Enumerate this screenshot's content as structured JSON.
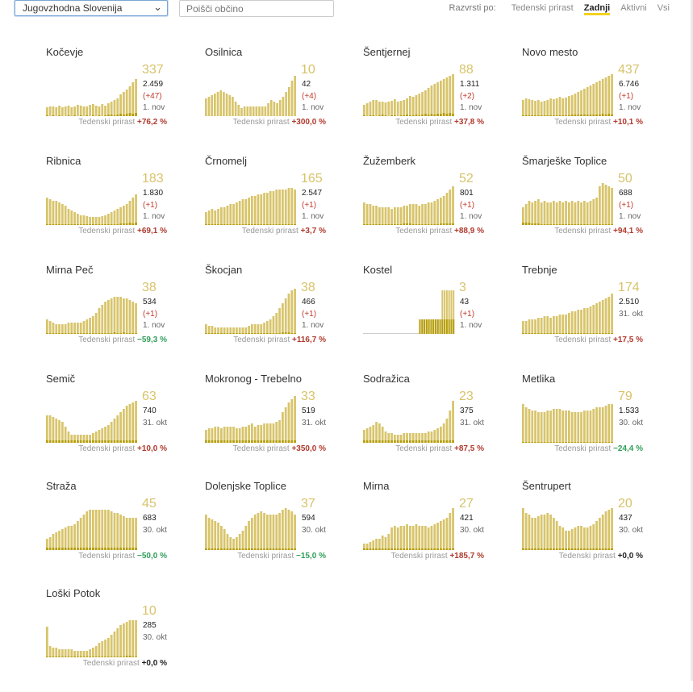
{
  "toolbar": {
    "region": "Jugovzhodna Slovenija",
    "search_placeholder": "Poišči občino",
    "sort_label": "Razvrsti po:",
    "sort_options": [
      "Tedenski prirast",
      "Zadnji",
      "Aktivni",
      "Vsi"
    ],
    "active_sort": "Zadnji"
  },
  "colors": {
    "bar_light": "#d8c46a",
    "bar_dark": "#b59e0c",
    "up": "#b03a2e",
    "down": "#2e9e57"
  },
  "footer_label": "Tedenski prirast",
  "municipalities": [
    {
      "name": "Kočevje",
      "active": "337",
      "total": "2.459",
      "delta": "(+47)",
      "date": "1. nov",
      "weekly": "+76,2 %",
      "trend": "up",
      "bars": [
        11,
        12,
        12,
        11,
        13,
        11,
        12,
        13,
        11,
        12,
        14,
        13,
        12,
        12,
        14,
        15,
        13,
        12,
        15,
        13,
        16,
        18,
        20,
        22,
        27,
        30,
        33,
        37,
        42,
        46
      ],
      "darks": [
        1,
        0,
        1,
        0,
        1,
        0,
        0,
        1,
        0,
        1,
        0,
        1,
        0,
        1,
        0,
        1,
        0,
        1,
        0,
        1,
        2,
        2,
        1,
        2,
        3,
        2,
        3,
        4,
        3,
        4
      ]
    },
    {
      "name": "Osilnica",
      "active": "10",
      "total": "42",
      "delta": "(+4)",
      "date": "1. nov",
      "weekly": "+300,0 %",
      "trend": "up",
      "bars": [
        22,
        24,
        26,
        28,
        30,
        32,
        30,
        28,
        26,
        24,
        18,
        14,
        10,
        12,
        12,
        12,
        12,
        12,
        12,
        12,
        12,
        16,
        20,
        18,
        16,
        20,
        24,
        30,
        36,
        44,
        50
      ],
      "darks": [
        0,
        0,
        0,
        0,
        0,
        0,
        0,
        0,
        0,
        0,
        0,
        0,
        0,
        0,
        0,
        0,
        0,
        0,
        0,
        0,
        0,
        0,
        0,
        0,
        0,
        0,
        0,
        0,
        0,
        0,
        0
      ]
    },
    {
      "name": "Šentjernej",
      "active": "88",
      "total": "1.311",
      "delta": "(+2)",
      "date": "1. nov",
      "weekly": "+37,8 %",
      "trend": "up",
      "bars": [
        14,
        16,
        18,
        20,
        20,
        18,
        18,
        17,
        18,
        19,
        21,
        18,
        19,
        20,
        22,
        25,
        24,
        26,
        28,
        30,
        32,
        35,
        38,
        40,
        42,
        44,
        46,
        48,
        50,
        52
      ],
      "darks": [
        1,
        0,
        1,
        1,
        0,
        1,
        2,
        1,
        0,
        1,
        1,
        0,
        1,
        1,
        2,
        1,
        1,
        2,
        1,
        2,
        3,
        2,
        3,
        2,
        3,
        3,
        4,
        3,
        4,
        3
      ]
    },
    {
      "name": "Novo mesto",
      "active": "437",
      "total": "6.746",
      "delta": "(+1)",
      "date": "1. nov",
      "weekly": "+10,1 %",
      "trend": "up",
      "bars": [
        20,
        22,
        21,
        20,
        19,
        20,
        18,
        19,
        20,
        22,
        21,
        22,
        24,
        22,
        23,
        25,
        26,
        28,
        30,
        32,
        34,
        36,
        38,
        40,
        42,
        44,
        46,
        48,
        50,
        52
      ],
      "darks": [
        1,
        1,
        1,
        1,
        1,
        1,
        1,
        1,
        1,
        1,
        1,
        1,
        1,
        1,
        1,
        1,
        2,
        2,
        2,
        2,
        2,
        2,
        2,
        2,
        2,
        2,
        3,
        2,
        3,
        2
      ]
    },
    {
      "name": "Ribnica",
      "active": "183",
      "total": "1.830",
      "delta": "(+1)",
      "date": "1. nov",
      "weekly": "+69,1 %",
      "trend": "up",
      "bars": [
        34,
        32,
        30,
        30,
        28,
        26,
        24,
        20,
        18,
        16,
        14,
        12,
        12,
        11,
        10,
        10,
        10,
        10,
        11,
        12,
        14,
        16,
        18,
        20,
        22,
        24,
        26,
        30,
        34,
        38
      ],
      "darks": [
        1,
        1,
        1,
        1,
        1,
        1,
        1,
        1,
        1,
        1,
        1,
        1,
        1,
        1,
        1,
        1,
        1,
        1,
        1,
        1,
        1,
        1,
        1,
        1,
        2,
        2,
        2,
        3,
        2,
        3
      ]
    },
    {
      "name": "Črnomelj",
      "active": "165",
      "total": "2.547",
      "delta": "(+1)",
      "date": "1. nov",
      "weekly": "+3,7 %",
      "trend": "up",
      "bars": [
        16,
        18,
        20,
        18,
        20,
        22,
        22,
        24,
        26,
        26,
        28,
        30,
        32,
        32,
        34,
        36,
        36,
        38,
        38,
        40,
        40,
        42,
        42,
        44,
        44,
        44,
        44,
        46,
        46,
        44
      ],
      "darks": [
        1,
        1,
        1,
        1,
        1,
        1,
        1,
        1,
        1,
        1,
        1,
        1,
        1,
        1,
        1,
        1,
        1,
        1,
        1,
        1,
        1,
        1,
        1,
        1,
        1,
        1,
        1,
        1,
        1,
        1
      ]
    },
    {
      "name": "Žužemberk",
      "active": "52",
      "total": "801",
      "delta": "(+1)",
      "date": "1. nov",
      "weekly": "+88,9 %",
      "trend": "up",
      "bars": [
        28,
        26,
        26,
        24,
        24,
        22,
        22,
        22,
        22,
        20,
        22,
        22,
        22,
        24,
        24,
        26,
        26,
        26,
        24,
        26,
        26,
        28,
        28,
        30,
        32,
        34,
        36,
        40,
        44,
        48
      ],
      "darks": [
        1,
        1,
        1,
        1,
        1,
        1,
        1,
        1,
        1,
        1,
        1,
        1,
        1,
        2,
        2,
        2,
        1,
        1,
        1,
        1,
        1,
        1,
        1,
        1,
        1,
        2,
        2,
        2,
        2,
        2
      ]
    },
    {
      "name": "Šmarješke Toplice",
      "active": "50",
      "total": "688",
      "delta": "(+1)",
      "date": "1. nov",
      "weekly": "+94,1 %",
      "trend": "up",
      "bars": [
        22,
        26,
        30,
        28,
        30,
        32,
        28,
        30,
        28,
        28,
        30,
        28,
        30,
        28,
        30,
        28,
        30,
        28,
        30,
        28,
        30,
        28,
        30,
        32,
        34,
        48,
        52,
        50,
        48,
        46
      ],
      "darks": [
        3,
        3,
        3,
        2,
        2,
        2,
        1,
        1,
        1,
        1,
        1,
        1,
        1,
        1,
        1,
        1,
        1,
        1,
        1,
        1,
        1,
        1,
        1,
        1,
        1,
        1,
        1,
        1,
        1,
        1
      ]
    },
    {
      "name": "Mirna Peč",
      "active": "38",
      "total": "534",
      "delta": "(+1)",
      "date": "1. nov",
      "weekly": "−59,3 %",
      "trend": "down",
      "bars": [
        18,
        16,
        14,
        12,
        12,
        12,
        12,
        14,
        14,
        14,
        14,
        14,
        16,
        18,
        20,
        22,
        26,
        32,
        36,
        40,
        42,
        44,
        46,
        46,
        46,
        44,
        44,
        42,
        40,
        38
      ],
      "darks": [
        1,
        1,
        1,
        1,
        1,
        1,
        1,
        1,
        1,
        1,
        1,
        1,
        1,
        1,
        1,
        1,
        1,
        1,
        1,
        1,
        1,
        1,
        2,
        1,
        1,
        2,
        1,
        1,
        1,
        1
      ]
    },
    {
      "name": "Škocjan",
      "active": "38",
      "total": "466",
      "delta": "(+1)",
      "date": "1. nov",
      "weekly": "+116,7 %",
      "trend": "up",
      "bars": [
        12,
        10,
        10,
        8,
        8,
        8,
        8,
        8,
        8,
        8,
        8,
        8,
        8,
        8,
        10,
        12,
        12,
        12,
        12,
        14,
        16,
        18,
        22,
        26,
        32,
        38,
        44,
        50,
        54,
        56
      ],
      "darks": [
        1,
        1,
        1,
        1,
        1,
        1,
        1,
        1,
        1,
        1,
        1,
        1,
        1,
        1,
        1,
        1,
        1,
        1,
        1,
        1,
        1,
        1,
        1,
        1,
        1,
        2,
        2,
        2,
        1,
        1
      ]
    },
    {
      "name": "Kostel",
      "active": "3",
      "total": "43",
      "delta": "(+1)",
      "date": "1. nov",
      "weekly": "",
      "trend": "zero",
      "bars": [
        0,
        0,
        0,
        0,
        0,
        0,
        0,
        0,
        0,
        0,
        0,
        0,
        0,
        0,
        0,
        0,
        0,
        0,
        0,
        0,
        0,
        0,
        0,
        0,
        0,
        18,
        18,
        18,
        18,
        18,
        18,
        18,
        18,
        18,
        18,
        54,
        54,
        54,
        54,
        54,
        54
      ],
      "darks": [
        0,
        0,
        0,
        0,
        0,
        0,
        0,
        0,
        0,
        0,
        0,
        0,
        0,
        0,
        0,
        0,
        0,
        0,
        0,
        0,
        0,
        0,
        0,
        0,
        0,
        18,
        18,
        18,
        18,
        18,
        18,
        18,
        18,
        18,
        18,
        18,
        18,
        18,
        18,
        18,
        18
      ]
    },
    {
      "name": "Trebnje",
      "active": "174",
      "total": "2.510",
      "delta": "",
      "date": "31. okt",
      "weekly": "+17,5 %",
      "trend": "up",
      "bars": [
        16,
        16,
        18,
        18,
        18,
        20,
        20,
        22,
        22,
        20,
        22,
        22,
        24,
        24,
        24,
        26,
        28,
        28,
        30,
        30,
        32,
        32,
        34,
        36,
        38,
        40,
        42,
        44,
        46,
        50
      ],
      "darks": [
        1,
        1,
        1,
        1,
        1,
        1,
        1,
        1,
        1,
        1,
        1,
        1,
        1,
        1,
        1,
        1,
        1,
        1,
        1,
        1,
        1,
        1,
        1,
        1,
        1,
        1,
        1,
        1,
        1,
        1
      ]
    },
    {
      "name": "Semič",
      "active": "63",
      "total": "740",
      "delta": "",
      "date": "31. okt",
      "weekly": "+10,0 %",
      "trend": "up",
      "bars": [
        34,
        34,
        32,
        30,
        28,
        26,
        20,
        14,
        10,
        10,
        10,
        10,
        10,
        10,
        10,
        12,
        14,
        16,
        18,
        20,
        22,
        26,
        30,
        34,
        38,
        42,
        46,
        48,
        50,
        52
      ],
      "darks": [
        3,
        3,
        3,
        3,
        3,
        3,
        3,
        3,
        3,
        3,
        3,
        3,
        3,
        3,
        3,
        3,
        3,
        3,
        3,
        3,
        3,
        3,
        3,
        3,
        3,
        3,
        3,
        3,
        3,
        3
      ]
    },
    {
      "name": "Mokronog - Trebelno",
      "active": "33",
      "total": "519",
      "delta": "",
      "date": "31. okt",
      "weekly": "+350,0 %",
      "trend": "up",
      "bars": [
        16,
        18,
        18,
        20,
        20,
        18,
        20,
        20,
        20,
        20,
        18,
        18,
        20,
        20,
        22,
        24,
        20,
        22,
        22,
        24,
        24,
        24,
        24,
        26,
        28,
        38,
        44,
        50,
        54,
        58
      ],
      "darks": [
        3,
        3,
        3,
        3,
        3,
        3,
        3,
        3,
        3,
        3,
        3,
        3,
        3,
        3,
        3,
        3,
        3,
        3,
        3,
        3,
        3,
        3,
        3,
        3,
        3,
        3,
        3,
        3,
        3,
        3
      ]
    },
    {
      "name": "Sodražica",
      "active": "23",
      "total": "375",
      "delta": "",
      "date": "31. okt",
      "weekly": "+87,5 %",
      "trend": "up",
      "bars": [
        16,
        18,
        20,
        22,
        26,
        24,
        20,
        14,
        12,
        12,
        10,
        10,
        10,
        12,
        12,
        12,
        12,
        12,
        12,
        12,
        12,
        14,
        14,
        16,
        18,
        20,
        24,
        30,
        40,
        52
      ],
      "darks": [
        3,
        3,
        3,
        3,
        3,
        3,
        3,
        3,
        3,
        3,
        3,
        3,
        3,
        3,
        3,
        3,
        3,
        3,
        3,
        3,
        3,
        3,
        3,
        3,
        3,
        3,
        3,
        3,
        3,
        3
      ]
    },
    {
      "name": "Metlika",
      "active": "79",
      "total": "1.533",
      "delta": "",
      "date": "30. okt",
      "weekly": "−24,4 %",
      "trend": "down",
      "bars": [
        48,
        44,
        42,
        40,
        40,
        38,
        38,
        38,
        40,
        40,
        42,
        42,
        42,
        40,
        40,
        40,
        38,
        38,
        38,
        38,
        40,
        40,
        40,
        42,
        44,
        44,
        44,
        46,
        48,
        48
      ],
      "darks": [
        1,
        1,
        1,
        1,
        1,
        1,
        1,
        1,
        1,
        1,
        1,
        1,
        1,
        1,
        1,
        1,
        1,
        1,
        1,
        1,
        1,
        1,
        1,
        1,
        1,
        1,
        1,
        1,
        1,
        1
      ]
    },
    {
      "name": "Straža",
      "active": "45",
      "total": "683",
      "delta": "",
      "date": "30. okt",
      "weekly": "−50,0 %",
      "trend": "down",
      "bars": [
        14,
        16,
        20,
        22,
        24,
        26,
        28,
        30,
        30,
        32,
        36,
        40,
        44,
        48,
        50,
        50,
        50,
        50,
        50,
        50,
        50,
        48,
        46,
        46,
        44,
        42,
        40,
        40,
        40,
        40
      ],
      "darks": [
        3,
        3,
        3,
        3,
        3,
        3,
        3,
        3,
        3,
        3,
        3,
        3,
        3,
        3,
        3,
        3,
        3,
        3,
        3,
        3,
        3,
        3,
        3,
        3,
        3,
        3,
        3,
        3,
        3,
        3
      ]
    },
    {
      "name": "Dolenjske Toplice",
      "active": "37",
      "total": "594",
      "delta": "",
      "date": "30. okt",
      "weekly": "−15,0 %",
      "trend": "down",
      "bars": [
        44,
        40,
        38,
        36,
        34,
        30,
        26,
        20,
        16,
        14,
        16,
        20,
        24,
        30,
        36,
        40,
        44,
        46,
        48,
        46,
        44,
        44,
        44,
        44,
        46,
        50,
        52,
        50,
        48,
        44
      ],
      "darks": [
        2,
        2,
        2,
        2,
        2,
        2,
        2,
        2,
        2,
        2,
        2,
        2,
        2,
        2,
        2,
        2,
        2,
        2,
        2,
        2,
        2,
        2,
        2,
        2,
        2,
        2,
        2,
        2,
        2,
        2
      ]
    },
    {
      "name": "Mirna",
      "active": "27",
      "total": "421",
      "delta": "",
      "date": "30. okt",
      "weekly": "+185,7 %",
      "trend": "up",
      "bars": [
        8,
        8,
        10,
        12,
        14,
        14,
        18,
        16,
        20,
        28,
        30,
        28,
        30,
        30,
        32,
        30,
        30,
        32,
        30,
        30,
        30,
        28,
        30,
        32,
        34,
        36,
        38,
        40,
        46,
        52
      ],
      "darks": [
        2,
        2,
        2,
        2,
        2,
        2,
        2,
        2,
        2,
        2,
        2,
        2,
        2,
        2,
        2,
        2,
        2,
        2,
        2,
        2,
        2,
        2,
        2,
        2,
        2,
        2,
        2,
        2,
        2,
        2
      ]
    },
    {
      "name": "Šentrupert",
      "active": "20",
      "total": "437",
      "delta": "",
      "date": "30. okt",
      "weekly": "+0,0 %",
      "trend": "zero",
      "bars": [
        52,
        46,
        44,
        40,
        40,
        42,
        44,
        44,
        46,
        44,
        40,
        36,
        30,
        28,
        24,
        24,
        26,
        28,
        30,
        30,
        28,
        28,
        30,
        32,
        36,
        40,
        44,
        48,
        50,
        52
      ],
      "darks": [
        2,
        2,
        2,
        2,
        2,
        2,
        2,
        2,
        2,
        2,
        2,
        2,
        2,
        2,
        2,
        2,
        2,
        2,
        2,
        2,
        2,
        2,
        2,
        2,
        2,
        2,
        2,
        2,
        2,
        2
      ]
    },
    {
      "name": "Loški Potok",
      "active": "10",
      "total": "285",
      "delta": "",
      "date": "30. okt",
      "weekly": "+0,0 %",
      "trend": "zero",
      "bars": [
        38,
        14,
        12,
        12,
        10,
        10,
        10,
        10,
        10,
        8,
        8,
        8,
        8,
        8,
        10,
        12,
        14,
        18,
        20,
        22,
        24,
        28,
        32,
        36,
        40,
        42,
        44,
        46,
        46,
        46
      ],
      "darks": [
        1,
        1,
        1,
        1,
        1,
        1,
        1,
        1,
        1,
        1,
        1,
        1,
        1,
        1,
        1,
        1,
        1,
        1,
        1,
        1,
        1,
        1,
        1,
        1,
        1,
        1,
        2,
        2,
        1,
        1
      ]
    }
  ]
}
